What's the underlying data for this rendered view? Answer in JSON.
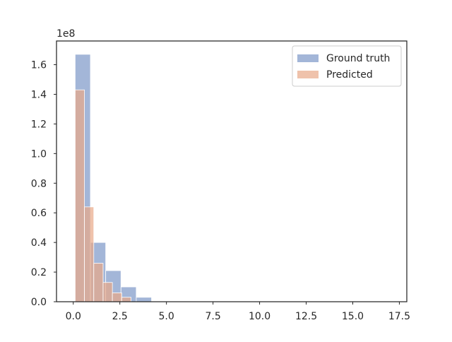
{
  "chart_data": {
    "type": "histogram",
    "title": "",
    "xlabel": "",
    "ylabel": "",
    "y_offset_label": "1e8",
    "xlim": [
      -0.9,
      17.9
    ],
    "ylim": [
      0,
      1.76
    ],
    "y_scale_factor": 100000000,
    "x_ticks": [
      "0.0",
      "2.5",
      "5.0",
      "7.5",
      "10.0",
      "12.5",
      "15.0",
      "17.5"
    ],
    "x_tick_values": [
      0,
      2.5,
      5,
      7.5,
      10,
      12.5,
      15,
      17.5
    ],
    "y_ticks": [
      "0.0",
      "0.2",
      "0.4",
      "0.6",
      "0.8",
      "1.0",
      "1.2",
      "1.4",
      "1.6"
    ],
    "y_tick_values": [
      0,
      0.2,
      0.4,
      0.6,
      0.8,
      1.0,
      1.2,
      1.4,
      1.6
    ],
    "legend": {
      "position": "top-right"
    },
    "series": [
      {
        "name": "Ground truth",
        "color": "#8fa6d0",
        "bins": [
          {
            "x0": 0.1,
            "x1": 0.92,
            "value": 1.67
          },
          {
            "x0": 0.92,
            "x1": 1.74,
            "value": 0.4
          },
          {
            "x0": 1.74,
            "x1": 2.56,
            "value": 0.21
          },
          {
            "x0": 2.56,
            "x1": 3.38,
            "value": 0.1
          },
          {
            "x0": 3.38,
            "x1": 4.2,
            "value": 0.03
          },
          {
            "x0": 4.2,
            "x1": 17.0,
            "value": 0.0
          }
        ]
      },
      {
        "name": "Predicted",
        "color": "#e8a888",
        "bins": [
          {
            "x0": 0.1,
            "x1": 0.6,
            "value": 1.43
          },
          {
            "x0": 0.6,
            "x1": 1.1,
            "value": 0.64
          },
          {
            "x0": 1.1,
            "x1": 1.6,
            "value": 0.26
          },
          {
            "x0": 1.6,
            "x1": 2.1,
            "value": 0.13
          },
          {
            "x0": 2.1,
            "x1": 2.6,
            "value": 0.06
          },
          {
            "x0": 2.6,
            "x1": 3.1,
            "value": 0.03
          },
          {
            "x0": 3.1,
            "x1": 17.0,
            "value": 0.0
          }
        ]
      }
    ]
  }
}
